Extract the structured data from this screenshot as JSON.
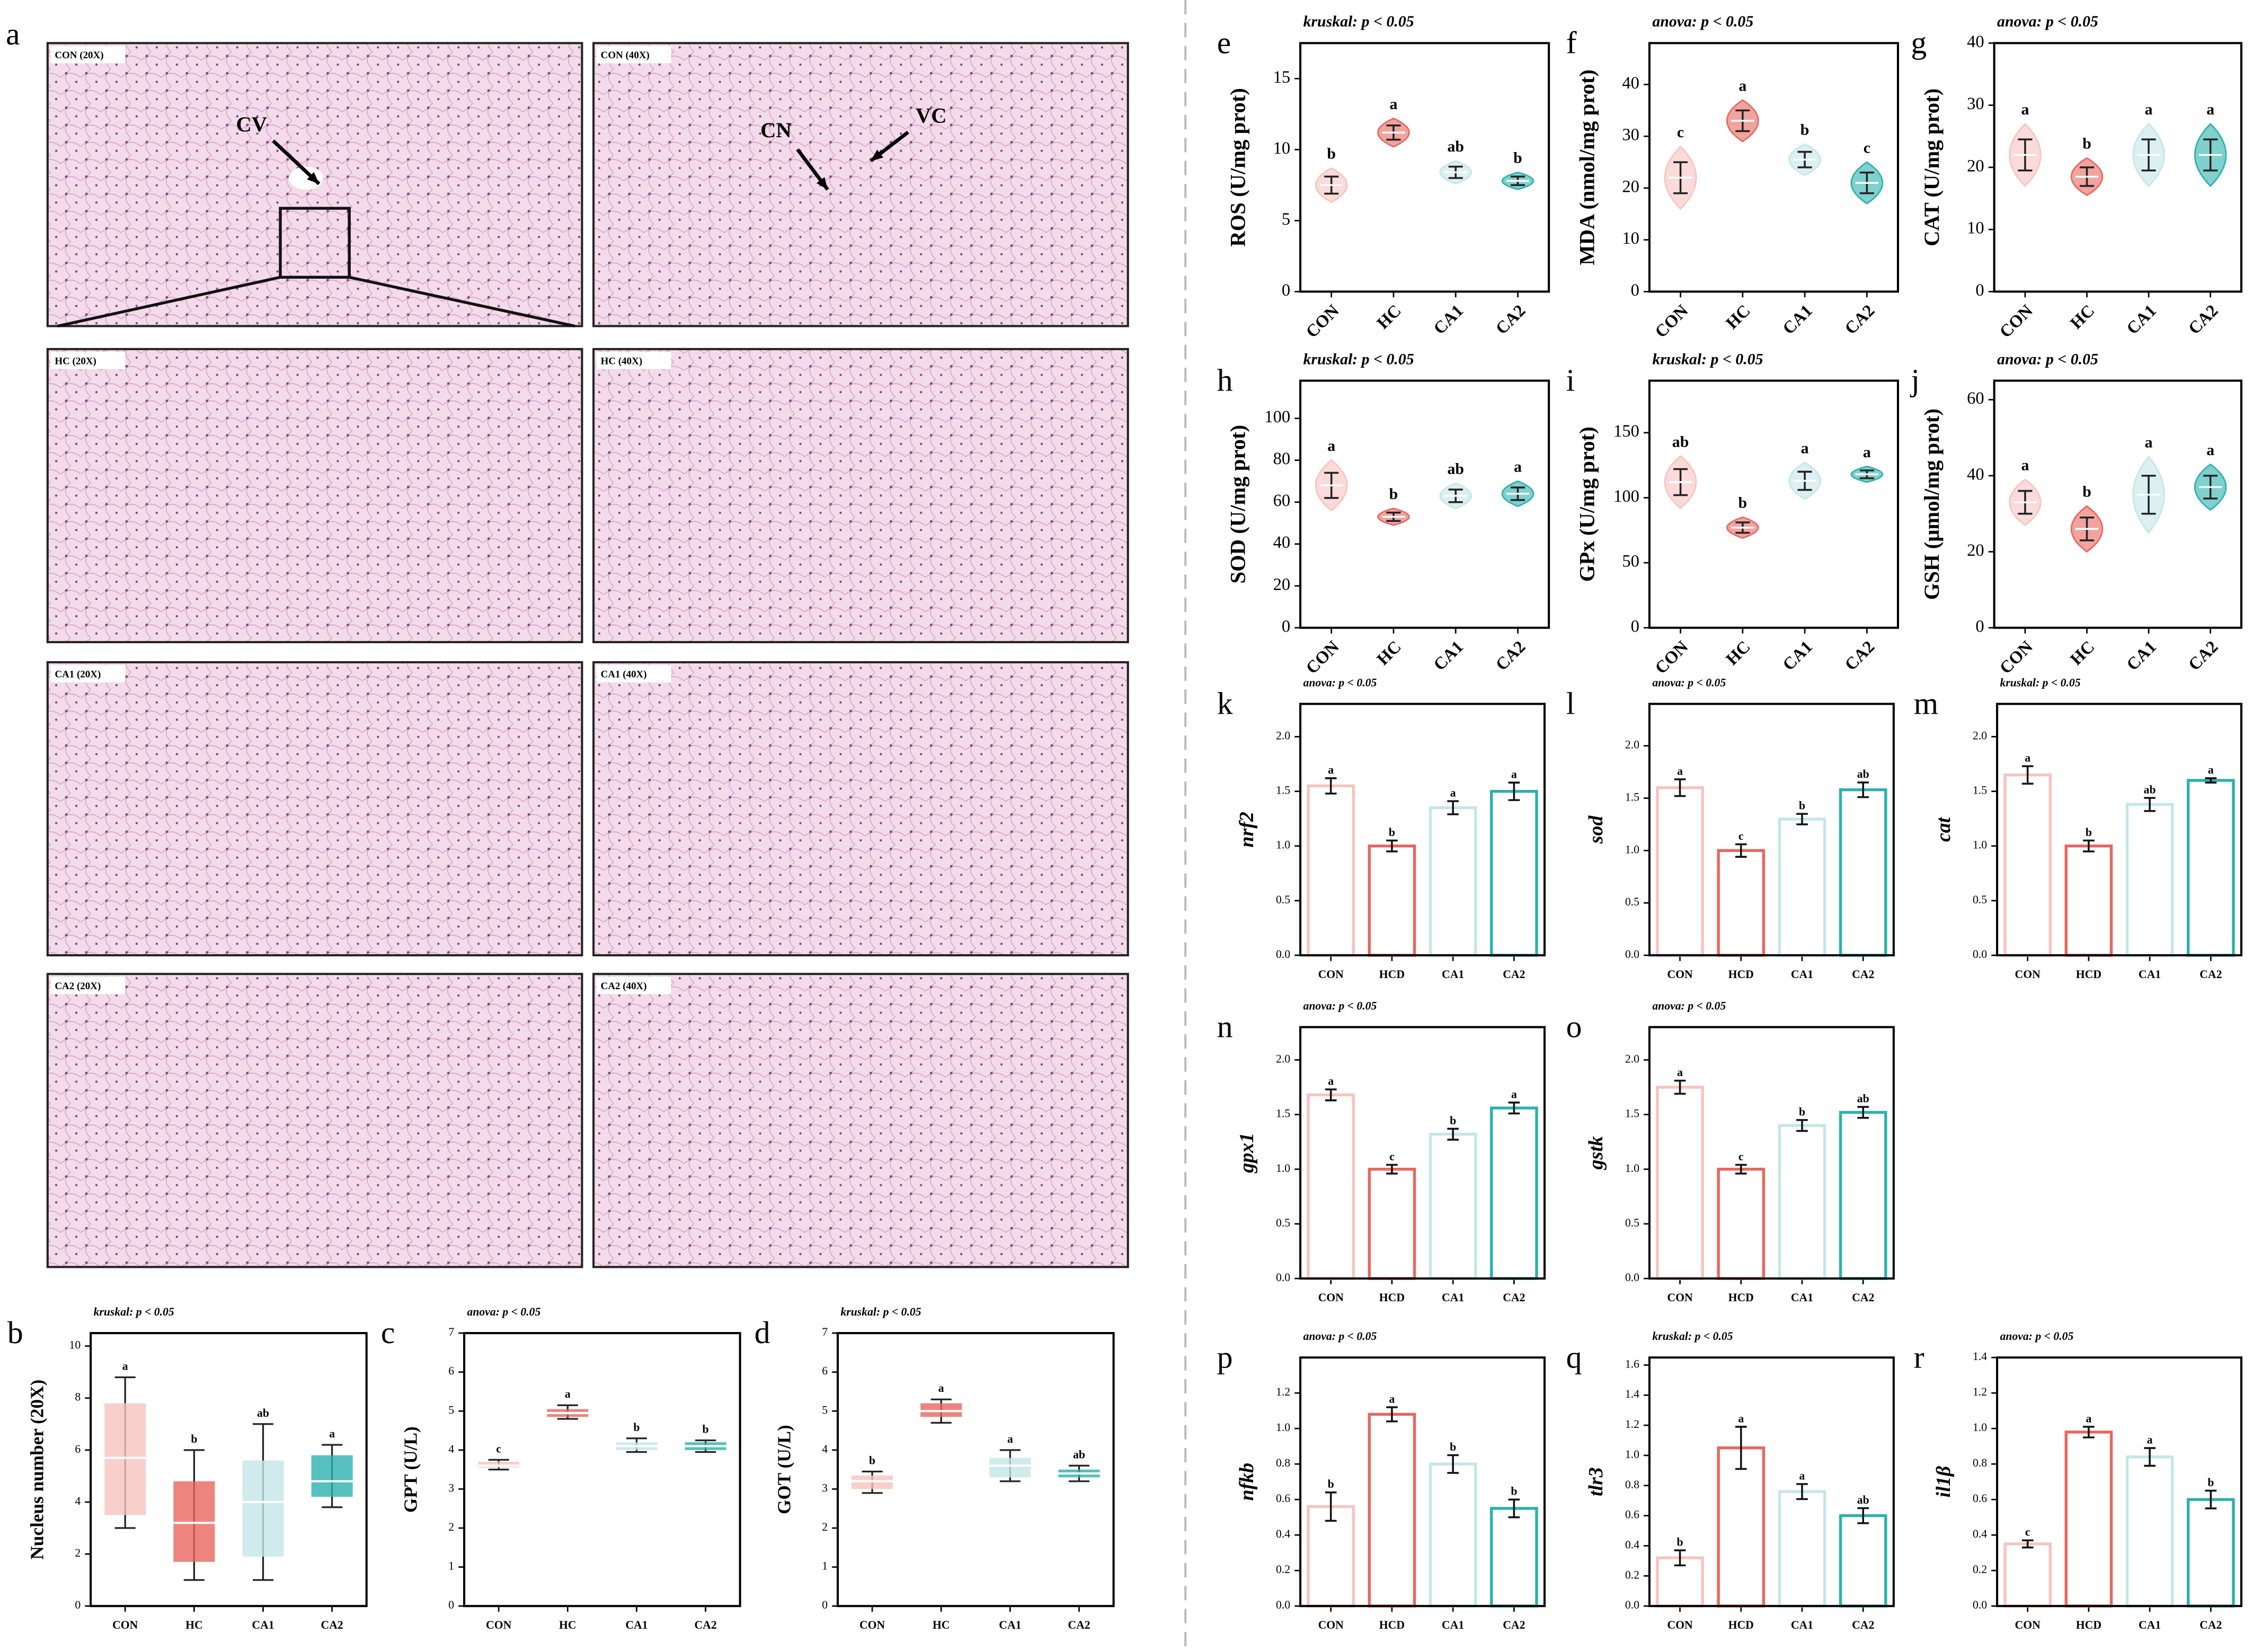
{
  "micrographs": {
    "panel": "a",
    "labels": [
      "CON (20X)",
      "CON (40X)",
      "HC (20X)",
      "HC (40X)",
      "CA1 (20X)",
      "CA1 (40X)",
      "CA2 (20X)",
      "CA2 (40X)"
    ],
    "annotations": [
      "CV",
      "CN",
      "VC"
    ]
  },
  "chart_data": [
    {
      "type": "box",
      "panel": "b",
      "stat": "kruskal: p < 0.05",
      "ylabel": "Nucleus number (20X)",
      "categories": [
        "CON",
        "HC",
        "CA1",
        "CA2"
      ],
      "colors": [
        "#f7c3bf",
        "#e8665e",
        "#c4e6e8",
        "#2cb1ae"
      ],
      "q1": [
        3.5,
        1.7,
        1.9,
        4.2
      ],
      "median": [
        5.7,
        3.2,
        4.0,
        4.8
      ],
      "q3": [
        7.8,
        4.8,
        5.6,
        5.8
      ],
      "whisker_low": [
        3.0,
        1.0,
        1.0,
        3.8
      ],
      "whisker_high": [
        8.8,
        6.0,
        7.0,
        6.2
      ],
      "letters": [
        "a",
        "b",
        "ab",
        "a"
      ],
      "ylim": [
        0,
        10.5
      ],
      "yticks": [
        0,
        2,
        4,
        6,
        8,
        10
      ]
    },
    {
      "type": "box",
      "panel": "c",
      "stat": "anova: p < 0.05",
      "ylabel": "GPT (U/L)",
      "categories": [
        "CON",
        "HC",
        "CA1",
        "CA2"
      ],
      "colors": [
        "#f7c3bf",
        "#e8665e",
        "#c4e6e8",
        "#2cb1ae"
      ],
      "q1": [
        3.55,
        4.85,
        4.0,
        4.0
      ],
      "median": [
        3.6,
        4.95,
        4.1,
        4.1
      ],
      "q3": [
        3.7,
        5.05,
        4.2,
        4.2
      ],
      "whisker_low": [
        3.5,
        4.8,
        3.95,
        3.95
      ],
      "whisker_high": [
        3.75,
        5.15,
        4.3,
        4.25
      ],
      "letters": [
        "c",
        "a",
        "b",
        "b"
      ],
      "ylim": [
        0,
        7
      ],
      "yticks": [
        0,
        1,
        2,
        3,
        4,
        5,
        6,
        7
      ]
    },
    {
      "type": "box",
      "panel": "d",
      "stat": "kruskal: p < 0.05",
      "ylabel": "GOT (U/L)",
      "categories": [
        "CON",
        "HC",
        "CA1",
        "CA2"
      ],
      "colors": [
        "#f7c3bf",
        "#e8665e",
        "#c4e6e8",
        "#2cb1ae"
      ],
      "q1": [
        3.0,
        4.85,
        3.3,
        3.3
      ],
      "median": [
        3.2,
        5.0,
        3.6,
        3.4
      ],
      "q3": [
        3.35,
        5.2,
        3.8,
        3.5
      ],
      "whisker_low": [
        2.9,
        4.7,
        3.2,
        3.2
      ],
      "whisker_high": [
        3.45,
        5.3,
        4.0,
        3.6
      ],
      "letters": [
        "b",
        "a",
        "a",
        "ab"
      ],
      "ylim": [
        0,
        7
      ],
      "yticks": [
        0,
        1,
        2,
        3,
        4,
        5,
        6,
        7
      ]
    },
    {
      "type": "violin",
      "panel": "e",
      "stat": "kruskal: p < 0.05",
      "ylabel": "ROS (U/mg prot)",
      "categories": [
        "CON",
        "HC",
        "CA1",
        "CA2"
      ],
      "colors": [
        "#f7c3bf",
        "#e8665e",
        "#c4e6e8",
        "#2cb1ae"
      ],
      "means": [
        7.5,
        11.2,
        8.4,
        7.8
      ],
      "sds": [
        0.6,
        0.5,
        0.4,
        0.3
      ],
      "letters": [
        "b",
        "a",
        "ab",
        "b"
      ],
      "ylim": [
        0,
        17.5
      ],
      "yticks": [
        0,
        5,
        10,
        15
      ]
    },
    {
      "type": "violin",
      "panel": "f",
      "stat": "anova: p < 0.05",
      "ylabel": "MDA (nmol/mg prot)",
      "categories": [
        "CON",
        "HC",
        "CA1",
        "CA2"
      ],
      "colors": [
        "#f7c3bf",
        "#e8665e",
        "#c4e6e8",
        "#2cb1ae"
      ],
      "means": [
        22,
        33,
        25.5,
        21
      ],
      "sds": [
        3,
        2,
        1.5,
        2
      ],
      "letters": [
        "c",
        "a",
        "b",
        "c"
      ],
      "ylim": [
        0,
        48
      ],
      "yticks": [
        0,
        10,
        20,
        30,
        40
      ]
    },
    {
      "type": "violin",
      "panel": "g",
      "stat": "anova: p < 0.05",
      "ylabel": "CAT (U/mg prot)",
      "categories": [
        "CON",
        "HC",
        "CA1",
        "CA2"
      ],
      "colors": [
        "#f7c3bf",
        "#e8665e",
        "#c4e6e8",
        "#2cb1ae"
      ],
      "means": [
        22,
        18.5,
        22,
        22
      ],
      "sds": [
        2.5,
        1.5,
        2.5,
        2.5
      ],
      "letters": [
        "a",
        "b",
        "a",
        "a"
      ],
      "ylim": [
        0,
        40
      ],
      "yticks": [
        0,
        10,
        20,
        30,
        40
      ]
    },
    {
      "type": "violin",
      "panel": "h",
      "stat": "kruskal: p < 0.05",
      "ylabel": "SOD (U/mg prot)",
      "categories": [
        "CON",
        "HC",
        "CA1",
        "CA2"
      ],
      "colors": [
        "#f7c3bf",
        "#e8665e",
        "#c4e6e8",
        "#2cb1ae"
      ],
      "means": [
        68,
        53,
        63,
        64
      ],
      "sds": [
        6,
        2,
        3,
        3
      ],
      "letters": [
        "a",
        "b",
        "ab",
        "a"
      ],
      "ylim": [
        0,
        118
      ],
      "yticks": [
        0,
        20,
        40,
        60,
        80,
        100
      ]
    },
    {
      "type": "violin",
      "panel": "i",
      "stat": "kruskal: p < 0.05",
      "ylabel": "GPx (U/mg prot)",
      "categories": [
        "CON",
        "HC",
        "CA1",
        "CA2"
      ],
      "colors": [
        "#f7c3bf",
        "#e8665e",
        "#c4e6e8",
        "#2cb1ae"
      ],
      "means": [
        112,
        77,
        113,
        118
      ],
      "sds": [
        10,
        4,
        7,
        3
      ],
      "letters": [
        "ab",
        "b",
        "a",
        "a"
      ],
      "ylim": [
        0,
        190
      ],
      "yticks": [
        0,
        50,
        100,
        150
      ]
    },
    {
      "type": "violin",
      "panel": "j",
      "stat": "anova: p < 0.05",
      "ylabel": "GSH (μmol/mg prot)",
      "categories": [
        "CON",
        "HC",
        "CA1",
        "CA2"
      ],
      "colors": [
        "#f7c3bf",
        "#e8665e",
        "#c4e6e8",
        "#2cb1ae"
      ],
      "means": [
        33,
        26,
        35,
        37
      ],
      "sds": [
        3,
        3,
        5,
        3
      ],
      "letters": [
        "a",
        "b",
        "a",
        "a"
      ],
      "ylim": [
        0,
        65
      ],
      "yticks": [
        0,
        20,
        40,
        60
      ]
    },
    {
      "type": "bar",
      "panel": "k",
      "stat": "anova: p < 0.05",
      "ylabel": "nrf2",
      "categories": [
        "CON",
        "HCD",
        "CA1",
        "CA2"
      ],
      "colors": [
        "#f7c3bf",
        "#e8665e",
        "#c4e6e8",
        "#2cb1ae"
      ],
      "values": [
        1.55,
        1.0,
        1.35,
        1.5
      ],
      "errors": [
        0.07,
        0.05,
        0.06,
        0.08
      ],
      "letters": [
        "a",
        "b",
        "a",
        "a"
      ],
      "ylim": [
        0,
        2.3
      ],
      "yticks": [
        {
          "value": 0,
          "label": "0.0"
        },
        0.5,
        {
          "value": 1,
          "label": "1.0"
        },
        1.5,
        {
          "value": 2,
          "label": "2.0"
        }
      ]
    },
    {
      "type": "bar",
      "panel": "l",
      "stat": "anova: p < 0.05",
      "ylabel": "sod",
      "categories": [
        "CON",
        "HCD",
        "CA1",
        "CA2"
      ],
      "colors": [
        "#f7c3bf",
        "#e8665e",
        "#c4e6e8",
        "#2cb1ae"
      ],
      "values": [
        1.6,
        1.0,
        1.3,
        1.58
      ],
      "errors": [
        0.08,
        0.06,
        0.05,
        0.07
      ],
      "letters": [
        "a",
        "c",
        "b",
        "ab"
      ],
      "ylim": [
        0,
        2.4
      ],
      "yticks": [
        {
          "value": 0,
          "label": "0.0"
        },
        0.5,
        {
          "value": 1,
          "label": "1.0"
        },
        1.5,
        {
          "value": 2,
          "label": "2.0"
        }
      ]
    },
    {
      "type": "bar",
      "panel": "m",
      "stat": "kruskal: p < 0.05",
      "ylabel": "cat",
      "categories": [
        "CON",
        "HCD",
        "CA1",
        "CA2"
      ],
      "colors": [
        "#f7c3bf",
        "#e8665e",
        "#c4e6e8",
        "#2cb1ae"
      ],
      "values": [
        1.65,
        1.0,
        1.38,
        1.6
      ],
      "errors": [
        0.08,
        0.05,
        0.06,
        0.02
      ],
      "letters": [
        "a",
        "b",
        "ab",
        "a"
      ],
      "ylim": [
        0,
        2.3
      ],
      "yticks": [
        {
          "value": 0,
          "label": "0.0"
        },
        0.5,
        {
          "value": 1,
          "label": "1.0"
        },
        1.5,
        {
          "value": 2,
          "label": "2.0"
        }
      ]
    },
    {
      "type": "bar",
      "panel": "n",
      "stat": "anova: p < 0.05",
      "ylabel": "gpx1",
      "categories": [
        "CON",
        "HCD",
        "CA1",
        "CA2"
      ],
      "colors": [
        "#f7c3bf",
        "#e8665e",
        "#c4e6e8",
        "#2cb1ae"
      ],
      "values": [
        1.68,
        1.0,
        1.32,
        1.56
      ],
      "errors": [
        0.05,
        0.04,
        0.05,
        0.05
      ],
      "letters": [
        "a",
        "c",
        "b",
        "a"
      ],
      "ylim": [
        0,
        2.3
      ],
      "yticks": [
        {
          "value": 0,
          "label": "0.0"
        },
        0.5,
        {
          "value": 1,
          "label": "1.0"
        },
        1.5,
        {
          "value": 2,
          "label": "2.0"
        }
      ]
    },
    {
      "type": "bar",
      "panel": "o",
      "stat": "anova: p < 0.05",
      "ylabel": "gstk",
      "categories": [
        "CON",
        "HCD",
        "CA1",
        "CA2"
      ],
      "colors": [
        "#f7c3bf",
        "#e8665e",
        "#c4e6e8",
        "#2cb1ae"
      ],
      "values": [
        1.75,
        1.0,
        1.4,
        1.52
      ],
      "errors": [
        0.06,
        0.04,
        0.05,
        0.05
      ],
      "letters": [
        "a",
        "c",
        "b",
        "ab"
      ],
      "ylim": [
        0,
        2.3
      ],
      "yticks": [
        {
          "value": 0,
          "label": "0.0"
        },
        0.5,
        {
          "value": 1,
          "label": "1.0"
        },
        1.5,
        {
          "value": 2,
          "label": "2.0"
        }
      ]
    },
    {
      "type": "bar",
      "panel": "p",
      "stat": "anova: p < 0.05",
      "ylabel": "nfkb",
      "categories": [
        "CON",
        "HCD",
        "CA1",
        "CA2"
      ],
      "colors": [
        "#f7c3bf",
        "#e8665e",
        "#c4e6e8",
        "#2cb1ae"
      ],
      "values": [
        0.56,
        1.08,
        0.8,
        0.55
      ],
      "errors": [
        0.08,
        0.04,
        0.05,
        0.05
      ],
      "letters": [
        "b",
        "a",
        "b",
        "b"
      ],
      "ylim": [
        0,
        1.4
      ],
      "yticks": [
        {
          "value": 0,
          "label": "0.0"
        },
        0.2,
        0.4,
        0.6,
        0.8,
        {
          "value": 1,
          "label": "1.0"
        },
        1.2
      ]
    },
    {
      "type": "bar",
      "panel": "q",
      "stat": "kruskal: p < 0.05",
      "ylabel": "tlr3",
      "categories": [
        "CON",
        "HCD",
        "CA1",
        "CA2"
      ],
      "colors": [
        "#f7c3bf",
        "#e8665e",
        "#c4e6e8",
        "#2cb1ae"
      ],
      "values": [
        0.32,
        1.05,
        0.76,
        0.6
      ],
      "errors": [
        0.05,
        0.14,
        0.05,
        0.05
      ],
      "letters": [
        "b",
        "a",
        "a",
        "ab"
      ],
      "ylim": [
        0,
        1.65
      ],
      "yticks": [
        {
          "value": 0,
          "label": "0.0"
        },
        0.2,
        0.4,
        0.6,
        0.8,
        {
          "value": 1,
          "label": "1.0"
        },
        1.2,
        1.4,
        1.6
      ]
    },
    {
      "type": "bar",
      "panel": "r",
      "stat": "anova: p < 0.05",
      "ylabel": "il1β",
      "categories": [
        "CON",
        "HCD",
        "CA1",
        "CA2"
      ],
      "colors": [
        "#f7c3bf",
        "#e8665e",
        "#c4e6e8",
        "#2cb1ae"
      ],
      "values": [
        0.35,
        0.98,
        0.84,
        0.6
      ],
      "errors": [
        0.02,
        0.03,
        0.05,
        0.05
      ],
      "letters": [
        "c",
        "a",
        "a",
        "b"
      ],
      "ylim": [
        0,
        1.4
      ],
      "yticks": [
        {
          "value": 0,
          "label": "0.0"
        },
        0.2,
        0.4,
        0.6,
        0.8,
        {
          "value": 1,
          "label": "1.0"
        },
        1.2,
        1.4
      ]
    }
  ]
}
